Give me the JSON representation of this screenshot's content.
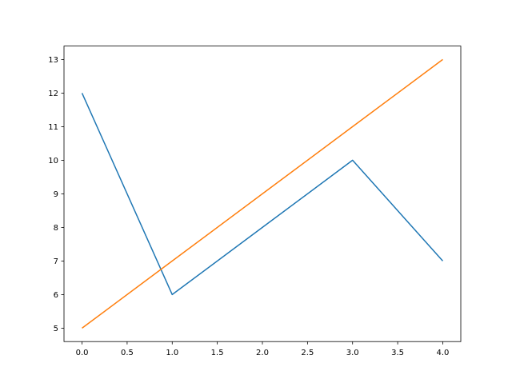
{
  "chart_data": {
    "type": "line",
    "title": "",
    "xlabel": "",
    "ylabel": "",
    "xlim": [
      -0.2,
      4.2
    ],
    "ylim": [
      4.6,
      13.4
    ],
    "grid": false,
    "x": [
      0,
      1,
      2,
      3,
      4
    ],
    "xticks": [
      0.0,
      0.5,
      1.0,
      1.5,
      2.0,
      2.5,
      3.0,
      3.5,
      4.0
    ],
    "xtick_labels": [
      "0.0",
      "0.5",
      "1.0",
      "1.5",
      "2.0",
      "2.5",
      "3.0",
      "3.5",
      "4.0"
    ],
    "yticks": [
      5,
      6,
      7,
      8,
      9,
      10,
      11,
      12,
      13
    ],
    "ytick_labels": [
      "5",
      "6",
      "7",
      "8",
      "9",
      "10",
      "11",
      "12",
      "13"
    ],
    "series": [
      {
        "values": [
          12,
          6,
          8,
          10,
          7
        ],
        "color": "#1f77b4"
      },
      {
        "values": [
          5,
          7,
          9,
          11,
          13
        ],
        "color": "#ff7f0e"
      }
    ]
  }
}
